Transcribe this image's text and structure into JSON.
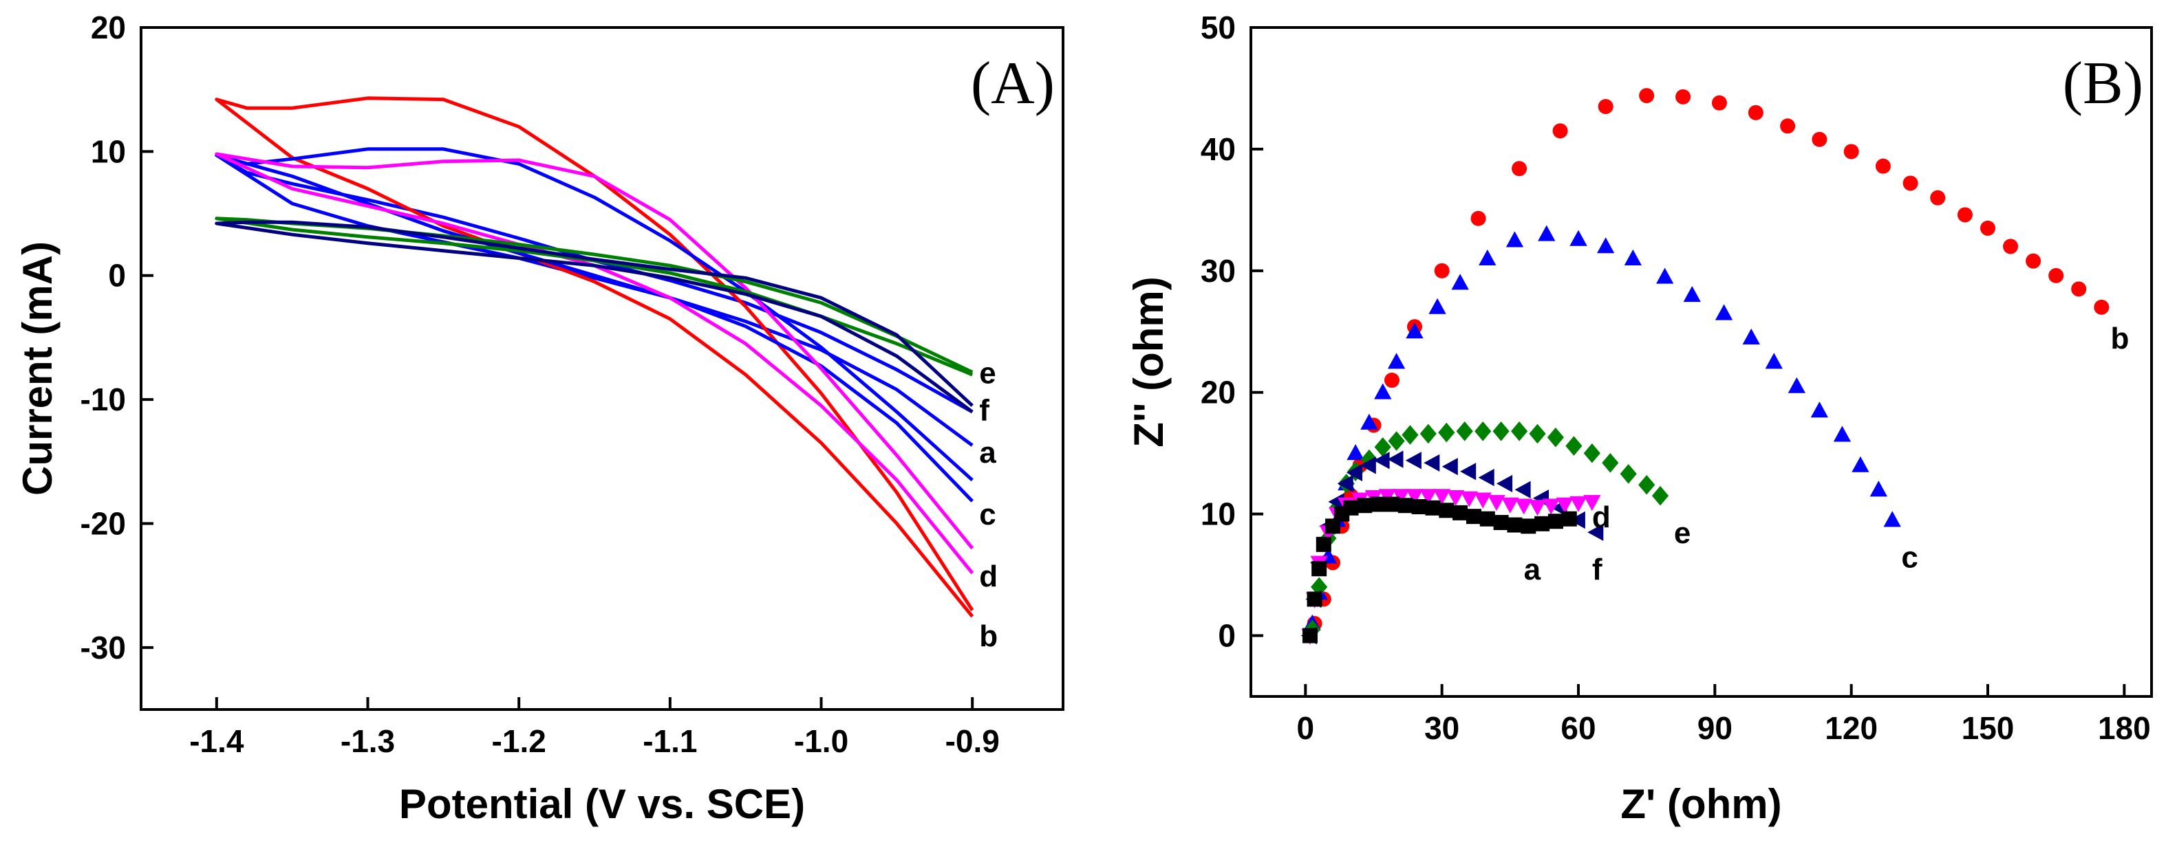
{
  "chart_data": [
    {
      "type": "line",
      "panel_label": "(A)",
      "xlabel": "Potential (V vs. SCE)",
      "ylabel": "Current (mA)",
      "xlim": [
        -1.45,
        -0.84
      ],
      "ylim": [
        -35,
        20
      ],
      "x_ticks": [
        -1.4,
        -1.3,
        -1.2,
        -1.1,
        -1.0,
        -0.9
      ],
      "x_tick_labels": [
        "-1.4",
        "-1.3",
        "-1.2",
        "-1.1",
        "-1.0",
        "-0.9"
      ],
      "y_ticks": [
        -30,
        -20,
        -10,
        0,
        10,
        20
      ],
      "y_tick_labels": [
        "-30",
        "-20",
        "-10",
        "0",
        "10",
        "20"
      ],
      "grid": false,
      "series": [
        {
          "name": "a",
          "color": "#0000ff",
          "x": [
            -0.9,
            -0.95,
            -1.0,
            -1.05,
            -1.1,
            -1.15,
            -1.2,
            -1.25,
            -1.3,
            -1.35,
            -1.4,
            -1.38,
            -1.35,
            -1.3,
            -1.25,
            -1.2,
            -1.15,
            -1.1,
            -1.05,
            -1.0,
            -0.95,
            -0.9
          ],
          "y": [
            -13.7,
            -9.2,
            -6.0,
            -3.7,
            -1.8,
            -0.2,
            1.4,
            2.7,
            4.0,
            5.8,
            9.7,
            8.3,
            7.4,
            6.1,
            4.7,
            3.0,
            1.2,
            -0.4,
            -2.2,
            -4.6,
            -7.6,
            -11.0
          ],
          "label_value": -14.2
        },
        {
          "name": "b",
          "color": "#ff0000",
          "x": [
            -0.9,
            -0.95,
            -1.0,
            -1.05,
            -1.1,
            -1.15,
            -1.2,
            -1.25,
            -1.3,
            -1.35,
            -1.4,
            -1.38,
            -1.35,
            -1.3,
            -1.25,
            -1.2,
            -1.15,
            -1.1,
            -1.05,
            -1.0,
            -0.95,
            -0.9
          ],
          "y": [
            -27.5,
            -20.0,
            -13.5,
            -8.0,
            -3.5,
            -0.5,
            1.8,
            4.0,
            7.0,
            9.5,
            14.2,
            13.5,
            13.5,
            14.3,
            14.2,
            12.0,
            8.0,
            3.3,
            -2.5,
            -9.5,
            -17.5,
            -27.0
          ],
          "label_value": -29.0
        },
        {
          "name": "c",
          "color": "#0000ff",
          "x": [
            -0.9,
            -0.95,
            -1.0,
            -1.05,
            -1.1,
            -1.15,
            -1.2,
            -1.25,
            -1.3,
            -1.35,
            -1.4,
            -1.38,
            -1.35,
            -1.3,
            -1.25,
            -1.2,
            -1.15,
            -1.1,
            -1.05,
            -1.0,
            -0.95,
            -0.9
          ],
          "y": [
            -18.2,
            -11.9,
            -7.3,
            -4.1,
            -1.8,
            0.0,
            1.8,
            3.6,
            5.8,
            8.0,
            9.7,
            9.0,
            9.4,
            10.2,
            10.2,
            9.0,
            6.3,
            2.8,
            -1.3,
            -5.8,
            -11.0,
            -16.5
          ],
          "label_value": -19.2
        },
        {
          "name": "d",
          "color": "#ff00ff",
          "x": [
            -0.9,
            -0.95,
            -1.0,
            -1.05,
            -1.1,
            -1.15,
            -1.2,
            -1.25,
            -1.3,
            -1.35,
            -1.4,
            -1.38,
            -1.35,
            -1.3,
            -1.25,
            -1.2,
            -1.15,
            -1.1,
            -1.05,
            -1.0,
            -0.95,
            -0.9
          ],
          "y": [
            -24.0,
            -16.5,
            -10.5,
            -5.5,
            -1.8,
            0.8,
            2.5,
            4.2,
            5.6,
            7.0,
            9.8,
            9.4,
            8.8,
            8.7,
            9.2,
            9.3,
            8.0,
            4.5,
            -1.0,
            -7.5,
            -14.5,
            -22.0
          ],
          "label_value": -24.2
        },
        {
          "name": "e",
          "color": "#008000",
          "x": [
            -0.9,
            -0.95,
            -1.0,
            -1.05,
            -1.1,
            -1.15,
            -1.2,
            -1.25,
            -1.3,
            -1.35,
            -1.4,
            -1.38,
            -1.35,
            -1.3,
            -1.25,
            -1.2,
            -1.15,
            -1.1,
            -1.05,
            -1.0,
            -0.95,
            -0.9
          ],
          "y": [
            -8.0,
            -5.5,
            -3.3,
            -1.3,
            0.2,
            1.2,
            2.0,
            2.6,
            3.1,
            3.7,
            4.6,
            4.5,
            4.2,
            3.8,
            3.2,
            2.5,
            1.7,
            0.8,
            -0.5,
            -2.2,
            -4.9,
            -7.8
          ],
          "label_value": -7.8
        },
        {
          "name": "f",
          "color": "#000080",
          "x": [
            -0.9,
            -0.95,
            -1.0,
            -1.05,
            -1.1,
            -1.15,
            -1.2,
            -1.25,
            -1.3,
            -1.35,
            -1.4,
            -1.38,
            -1.35,
            -1.3,
            -1.25,
            -1.2,
            -1.15,
            -1.1,
            -1.05,
            -1.0,
            -0.95,
            -0.9
          ],
          "y": [
            -11.0,
            -6.5,
            -3.3,
            -1.5,
            -0.2,
            0.8,
            1.4,
            2.0,
            2.6,
            3.3,
            4.2,
            4.3,
            4.3,
            3.9,
            3.1,
            2.2,
            1.3,
            0.5,
            -0.2,
            -1.8,
            -4.8,
            -10.5
          ],
          "label_value": -10.8
        }
      ]
    },
    {
      "type": "scatter",
      "panel_label": "(B)",
      "xlabel": "Z' (ohm)",
      "ylabel": "Z'' (ohm)",
      "xlim": [
        -12,
        186
      ],
      "ylim": [
        -5,
        50
      ],
      "x_ticks": [
        0,
        30,
        60,
        90,
        120,
        150,
        180
      ],
      "x_tick_labels": [
        "0",
        "30",
        "60",
        "90",
        "120",
        "150",
        "180"
      ],
      "y_ticks": [
        0,
        10,
        20,
        30,
        40,
        50
      ],
      "y_tick_labels": [
        "0",
        "10",
        "20",
        "30",
        "40",
        "50"
      ],
      "grid": false,
      "series": [
        {
          "name": "a",
          "color": "#000000",
          "marker": "square",
          "x": [
            1,
            2,
            3,
            4,
            6,
            8,
            10,
            13,
            16,
            19,
            22,
            25,
            28,
            31,
            34,
            37,
            40,
            43,
            46,
            49,
            52,
            55,
            58
          ],
          "y": [
            0,
            3,
            5.5,
            7.5,
            9,
            10,
            10.5,
            10.7,
            10.8,
            10.8,
            10.7,
            10.6,
            10.5,
            10.3,
            10.1,
            9.8,
            9.6,
            9.3,
            9.1,
            9.0,
            9.2,
            9.4,
            9.6
          ],
          "label_pos": [
            48,
            5.5
          ]
        },
        {
          "name": "b",
          "color": "#ff0000",
          "marker": "circle",
          "x": [
            2,
            4,
            6,
            8,
            10,
            12,
            15,
            19,
            24,
            30,
            38,
            47,
            56,
            66,
            75,
            83,
            91,
            99,
            106,
            113,
            120,
            127,
            133,
            139,
            145,
            150,
            155,
            160,
            165,
            170,
            175
          ],
          "y": [
            1,
            3,
            6,
            9,
            11.5,
            14,
            17.3,
            21,
            25.4,
            30,
            34.3,
            38.4,
            41.5,
            43.5,
            44.4,
            44.3,
            43.8,
            43.0,
            41.9,
            40.8,
            39.8,
            38.6,
            37.2,
            36.0,
            34.6,
            33.5,
            32.0,
            30.8,
            29.6,
            28.5,
            27.0
          ],
          "label_pos": [
            177,
            24.5
          ]
        },
        {
          "name": "c",
          "color": "#0000ff",
          "marker": "triangle",
          "x": [
            1.5,
            3,
            5,
            7,
            9,
            11,
            14,
            17,
            20,
            24,
            29,
            34,
            40,
            46,
            53,
            60,
            66,
            72,
            79,
            85,
            92,
            98,
            103,
            108,
            113,
            118,
            122,
            126,
            129
          ],
          "y": [
            1,
            3.5,
            6.5,
            9.5,
            12.5,
            15,
            17.5,
            20,
            22.5,
            25,
            27,
            29,
            31,
            32.5,
            33,
            32.6,
            32,
            31,
            29.5,
            28,
            26.5,
            24.5,
            22.5,
            20.5,
            18.5,
            16.5,
            14,
            12,
            9.5
          ],
          "label_pos": [
            131,
            6.5
          ]
        },
        {
          "name": "d",
          "color": "#ff00ff",
          "marker": "triangle-down",
          "x": [
            1,
            2,
            3,
            5,
            7,
            9,
            12,
            15,
            18,
            21,
            24,
            27,
            30,
            33,
            36,
            39,
            42,
            45,
            48,
            51,
            54,
            57,
            60,
            63
          ],
          "y": [
            0,
            3,
            6,
            8.5,
            10,
            10.8,
            11.2,
            11.4,
            11.5,
            11.5,
            11.5,
            11.5,
            11.5,
            11.4,
            11.3,
            11.2,
            11.0,
            10.8,
            10.7,
            10.6,
            10.7,
            10.8,
            10.9,
            11.0
          ],
          "label_pos": [
            63,
            9.8
          ]
        },
        {
          "name": "e",
          "color": "#008000",
          "marker": "diamond",
          "x": [
            1.5,
            3,
            5,
            7,
            9,
            11,
            14,
            17,
            20,
            23,
            27,
            31,
            35,
            39,
            43,
            47,
            51,
            55,
            59,
            63,
            67,
            71,
            75,
            78
          ],
          "y": [
            0.5,
            4,
            8,
            10.5,
            12.5,
            13.5,
            14.5,
            15.5,
            16,
            16.5,
            16.6,
            16.7,
            16.8,
            16.8,
            16.8,
            16.8,
            16.6,
            16.3,
            15.6,
            15.0,
            14.2,
            13.3,
            12.4,
            11.5
          ],
          "label_pos": [
            81,
            8.5
          ]
        },
        {
          "name": "f",
          "color": "#000080",
          "marker": "triangle-left",
          "x": [
            1,
            2,
            3,
            5,
            7,
            9,
            11,
            14,
            17,
            20,
            24,
            28,
            32,
            36,
            40,
            44,
            48,
            52,
            56,
            60,
            64
          ],
          "y": [
            0,
            3,
            6,
            9,
            11,
            12.5,
            13.4,
            14.0,
            14.4,
            14.5,
            14.4,
            14.2,
            13.9,
            13.5,
            13.0,
            12.5,
            12.0,
            11.3,
            10.5,
            9.5,
            8.5
          ],
          "label_pos": [
            63,
            5.5
          ]
        }
      ]
    }
  ]
}
